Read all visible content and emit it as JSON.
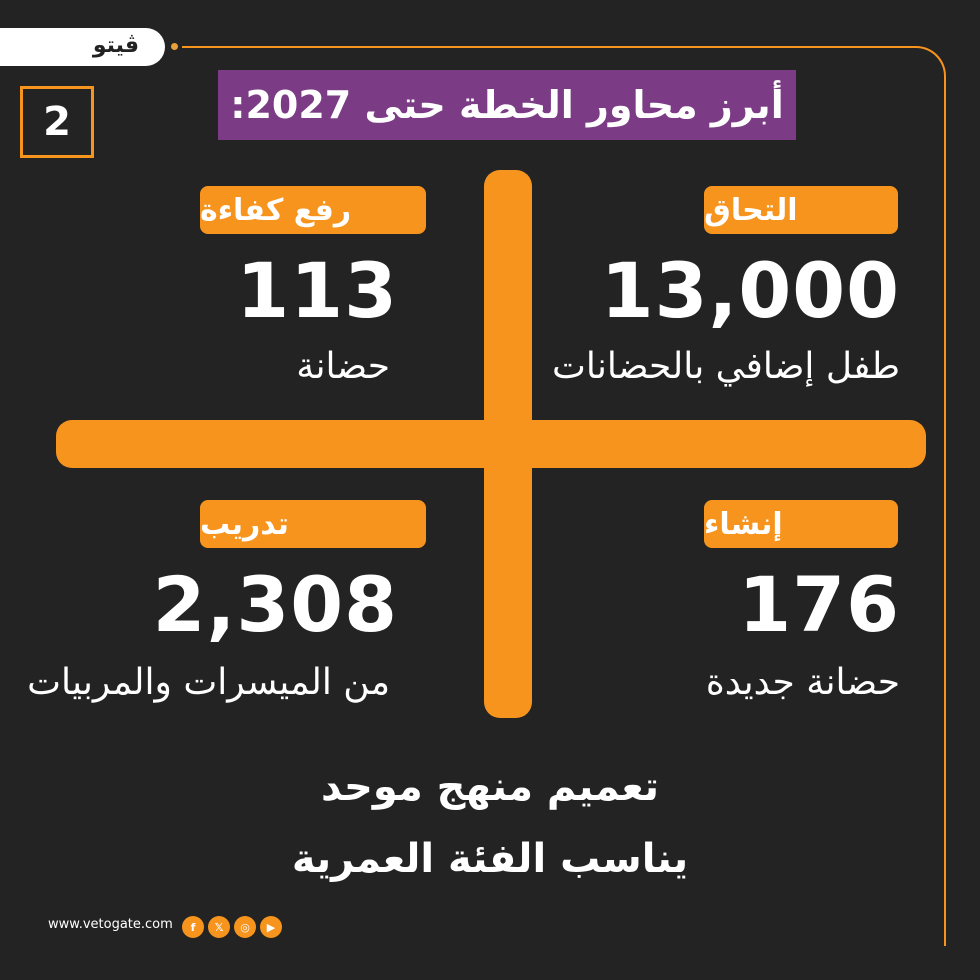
{
  "logo": {
    "text": "ڤيتو"
  },
  "page_number": "2",
  "title": "أبرز محاور الخطة حتى 2027:",
  "quadrants": {
    "top_right": {
      "label": "التحاق",
      "number": "13,000",
      "desc": "طفل إضافي بالحضانات"
    },
    "top_left": {
      "label": "رفع كفاءة",
      "number": "113",
      "desc": "حضانة"
    },
    "bottom_right": {
      "label": "إنشاء",
      "number": "176",
      "desc": "حضانة جديدة"
    },
    "bottom_left": {
      "label": "تدريب",
      "number": "2,308",
      "desc": "من الميسرات والمربيات"
    }
  },
  "bottom_text": {
    "line1": "تعميم منهج موحد",
    "line2": "يناسب الفئة العمرية"
  },
  "footer": {
    "url": "www.vetogate.com",
    "social_icons": [
      "facebook-icon",
      "x-icon",
      "instagram-icon",
      "youtube-icon"
    ],
    "social_glyphs": [
      "f",
      "𝕏",
      "◎",
      "▶"
    ]
  },
  "colors": {
    "background": "#232323",
    "accent": "#f7941d",
    "title_bg": "#7b3c85"
  }
}
